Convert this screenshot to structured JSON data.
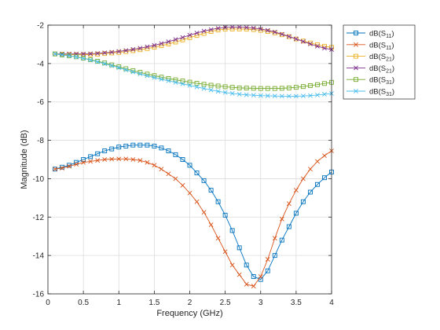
{
  "chart_data": {
    "type": "line",
    "xlabel": "Frequency (GHz)",
    "ylabel": "Magnitude (dB)",
    "xlim": [
      0,
      4
    ],
    "ylim": [
      -16,
      -2
    ],
    "xticks": [
      "0",
      "0.5",
      "1",
      "1.5",
      "2",
      "2.5",
      "3",
      "3.5",
      "4"
    ],
    "yticks": [
      "-16",
      "-14",
      "-12",
      "-10",
      "-8",
      "-6",
      "-4",
      "-2"
    ],
    "grid": true,
    "legend_position": "outside-top-right",
    "x": [
      0.1,
      0.2,
      0.3,
      0.4,
      0.5,
      0.6,
      0.7,
      0.8,
      0.9,
      1.0,
      1.1,
      1.2,
      1.3,
      1.4,
      1.5,
      1.6,
      1.7,
      1.8,
      1.9,
      2.0,
      2.1,
      2.2,
      2.3,
      2.4,
      2.5,
      2.6,
      2.7,
      2.8,
      2.9,
      3.0,
      3.1,
      3.2,
      3.3,
      3.4,
      3.5,
      3.6,
      3.7,
      3.8,
      3.9,
      4.0
    ],
    "series": [
      {
        "label_main": "dB(S",
        "label_sub": "11",
        "color": "#0072bd",
        "marker": "square",
        "values": [
          -9.5,
          -9.4,
          -9.3,
          -9.15,
          -9.0,
          -8.85,
          -8.7,
          -8.55,
          -8.45,
          -8.35,
          -8.3,
          -8.25,
          -8.25,
          -8.25,
          -8.3,
          -8.4,
          -8.55,
          -8.75,
          -9.0,
          -9.3,
          -9.7,
          -10.1,
          -10.6,
          -11.2,
          -11.9,
          -12.7,
          -13.6,
          -14.5,
          -15.1,
          -15.25,
          -14.8,
          -14.0,
          -13.2,
          -12.5,
          -11.8,
          -11.2,
          -10.7,
          -10.3,
          -9.95,
          -9.65
        ]
      },
      {
        "label_main": "dB(S",
        "label_sub": "11",
        "color": "#d95319",
        "marker": "x",
        "values": [
          -9.5,
          -9.45,
          -9.35,
          -9.25,
          -9.15,
          -9.1,
          -9.05,
          -9.0,
          -8.98,
          -8.97,
          -8.97,
          -9.0,
          -9.05,
          -9.15,
          -9.3,
          -9.5,
          -9.75,
          -10.0,
          -10.35,
          -10.75,
          -11.2,
          -11.75,
          -12.4,
          -13.1,
          -13.8,
          -14.5,
          -15.0,
          -15.5,
          -15.6,
          -15.1,
          -14.2,
          -13.1,
          -12.1,
          -11.3,
          -10.6,
          -10.0,
          -9.5,
          -9.1,
          -8.8,
          -8.55
        ]
      },
      {
        "label_main": "dB(S",
        "label_sub": "21",
        "color": "#edb120",
        "marker": "square",
        "values": [
          -3.5,
          -3.52,
          -3.53,
          -3.54,
          -3.54,
          -3.53,
          -3.51,
          -3.48,
          -3.45,
          -3.42,
          -3.38,
          -3.33,
          -3.28,
          -3.22,
          -3.15,
          -3.07,
          -2.98,
          -2.88,
          -2.77,
          -2.65,
          -2.54,
          -2.43,
          -2.33,
          -2.25,
          -2.21,
          -2.2,
          -2.2,
          -2.21,
          -2.23,
          -2.27,
          -2.33,
          -2.4,
          -2.5,
          -2.6,
          -2.72,
          -2.83,
          -2.93,
          -3.02,
          -3.1,
          -3.16
        ]
      },
      {
        "label_main": "dB(S",
        "label_sub": "21",
        "color": "#7e2f8e",
        "marker": "x",
        "values": [
          -3.5,
          -3.5,
          -3.5,
          -3.5,
          -3.5,
          -3.49,
          -3.47,
          -3.44,
          -3.41,
          -3.37,
          -3.32,
          -3.26,
          -3.2,
          -3.13,
          -3.05,
          -2.96,
          -2.86,
          -2.75,
          -2.64,
          -2.52,
          -2.41,
          -2.31,
          -2.23,
          -2.16,
          -2.12,
          -2.1,
          -2.1,
          -2.12,
          -2.15,
          -2.2,
          -2.27,
          -2.36,
          -2.47,
          -2.59,
          -2.72,
          -2.85,
          -2.98,
          -3.1,
          -3.2,
          -3.27
        ]
      },
      {
        "label_main": "dB(S",
        "label_sub": "31",
        "color": "#77ac30",
        "marker": "square",
        "values": [
          -3.5,
          -3.55,
          -3.6,
          -3.65,
          -3.72,
          -3.8,
          -3.88,
          -3.97,
          -4.07,
          -4.17,
          -4.27,
          -4.37,
          -4.46,
          -4.55,
          -4.63,
          -4.71,
          -4.78,
          -4.85,
          -4.91,
          -4.97,
          -5.03,
          -5.08,
          -5.13,
          -5.17,
          -5.21,
          -5.24,
          -5.27,
          -5.28,
          -5.29,
          -5.3,
          -5.3,
          -5.3,
          -5.29,
          -5.27,
          -5.24,
          -5.2,
          -5.15,
          -5.1,
          -5.04,
          -4.98
        ]
      },
      {
        "label_main": "dB(S",
        "label_sub": "31",
        "color": "#4dbeee",
        "marker": "x",
        "values": [
          -3.5,
          -3.55,
          -3.6,
          -3.66,
          -3.73,
          -3.82,
          -3.91,
          -4.01,
          -4.11,
          -4.22,
          -4.33,
          -4.44,
          -4.54,
          -4.64,
          -4.73,
          -4.82,
          -4.9,
          -4.98,
          -5.06,
          -5.14,
          -5.22,
          -5.3,
          -5.38,
          -5.45,
          -5.51,
          -5.56,
          -5.6,
          -5.63,
          -5.65,
          -5.67,
          -5.68,
          -5.69,
          -5.7,
          -5.7,
          -5.7,
          -5.69,
          -5.67,
          -5.64,
          -5.6,
          -5.56
        ]
      }
    ]
  }
}
